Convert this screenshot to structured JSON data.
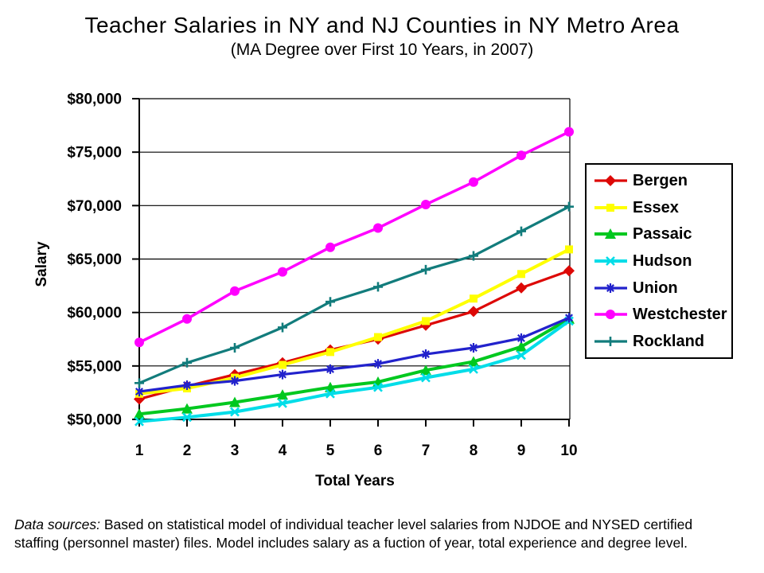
{
  "chart_data": {
    "type": "line",
    "title": "Teacher Salaries in NY and NJ Counties in NY Metro Area",
    "subtitle": "(MA Degree over First 10 Years, in 2007)",
    "xlabel": "Total Years",
    "ylabel": "Salary",
    "x": [
      1,
      2,
      3,
      4,
      5,
      6,
      7,
      8,
      9,
      10
    ],
    "x_tick_labels": [
      "1",
      "2",
      "3",
      "4",
      "5",
      "6",
      "7",
      "8",
      "9",
      "10"
    ],
    "ylim": [
      50000,
      80000
    ],
    "ytick_step": 5000,
    "ytick_labels": [
      "$50,000",
      "$55,000",
      "$60,000",
      "$65,000",
      "$70,000",
      "$75,000",
      "$80,000"
    ],
    "grid": true,
    "legend_position": "right",
    "series": [
      {
        "name": "Bergen",
        "color": "#DD0806",
        "marker": "diamond",
        "line_width": 3.2,
        "values": [
          51900,
          53100,
          54200,
          55300,
          56500,
          57500,
          58800,
          60100,
          62300,
          63900
        ]
      },
      {
        "name": "Essex",
        "color": "#FFFF00",
        "marker": "square",
        "line_width": 4,
        "values": [
          52400,
          52900,
          53900,
          55100,
          56300,
          57700,
          59200,
          61300,
          63600,
          65900
        ]
      },
      {
        "name": "Passaic",
        "color": "#00C81F",
        "marker": "triangle-up",
        "line_width": 4,
        "values": [
          50500,
          51000,
          51600,
          52300,
          53000,
          53500,
          54600,
          55400,
          56800,
          59400
        ]
      },
      {
        "name": "Hudson",
        "color": "#00DDE8",
        "marker": "x",
        "line_width": 4,
        "values": [
          49800,
          50200,
          50700,
          51500,
          52400,
          53000,
          53900,
          54700,
          56000,
          59200
        ]
      },
      {
        "name": "Union",
        "color": "#2222CC",
        "marker": "asterisk",
        "line_width": 3.2,
        "values": [
          52600,
          53200,
          53600,
          54200,
          54700,
          55200,
          56100,
          56700,
          57600,
          59500
        ]
      },
      {
        "name": "Westchester",
        "color": "#FF00FF",
        "marker": "circle",
        "line_width": 3.5,
        "values": [
          57200,
          59400,
          62000,
          63800,
          66100,
          67900,
          70100,
          72200,
          74700,
          76900
        ]
      },
      {
        "name": "Rockland",
        "color": "#127C7C",
        "marker": "plus",
        "line_width": 3.2,
        "values": [
          53400,
          55300,
          56700,
          58600,
          61000,
          62400,
          64000,
          65300,
          67600,
          69900
        ]
      }
    ]
  },
  "footer": {
    "lead": "Data sources:",
    "line1": " Based on statistical model of individual teacher level salaries from NJDOE and NYSED certified",
    "line2": "staffing (personnel master) files. Model includes salary as a fuction of year, total experience and degree level."
  }
}
